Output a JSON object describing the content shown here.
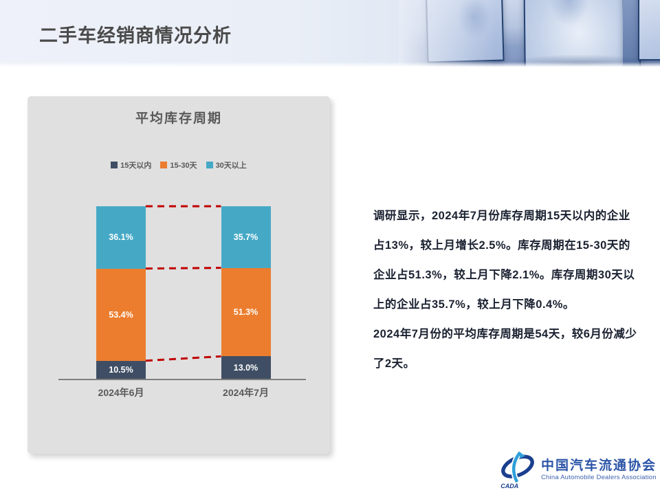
{
  "header": {
    "title": "二手车经销商情况分析"
  },
  "chart_data": {
    "type": "bar",
    "stacked": true,
    "title": "平均库存周期",
    "categories": [
      "2024年6月",
      "2024年7月"
    ],
    "series": [
      {
        "name": "15天以内",
        "color": "#3f4e64",
        "values": [
          10.5,
          13.0
        ]
      },
      {
        "name": "15-30天",
        "color": "#ec7d2e",
        "values": [
          53.4,
          51.3
        ]
      },
      {
        "name": "30天以上",
        "color": "#45a9c6",
        "values": [
          36.1,
          35.7
        ]
      }
    ],
    "value_format": "percent",
    "label_color": "#ffffff",
    "connector_color": "#c00000",
    "legend_position": "top",
    "grid": false,
    "ylim": [
      0,
      100
    ]
  },
  "analysis": {
    "lines": [
      "调研显示，2024年7月份库存周期15天以内的企业",
      "占13%，较上月增长2.5%。库存周期在15-30天的",
      "企业占51.3%，较上月下降2.1%。库存周期30天以",
      "上的企业占35.7%，较上月下降0.4%。",
      "2024年7月份的平均库存周期是54天，较6月份减少",
      "了2天。"
    ]
  },
  "logo": {
    "emblem_text": "CADA",
    "name_cn": "中国汽车流通协会",
    "name_en": "China Automobile Dealers Association",
    "brand_blue_dark": "#1b3f8f",
    "brand_blue_light": "#2e9fd8"
  }
}
